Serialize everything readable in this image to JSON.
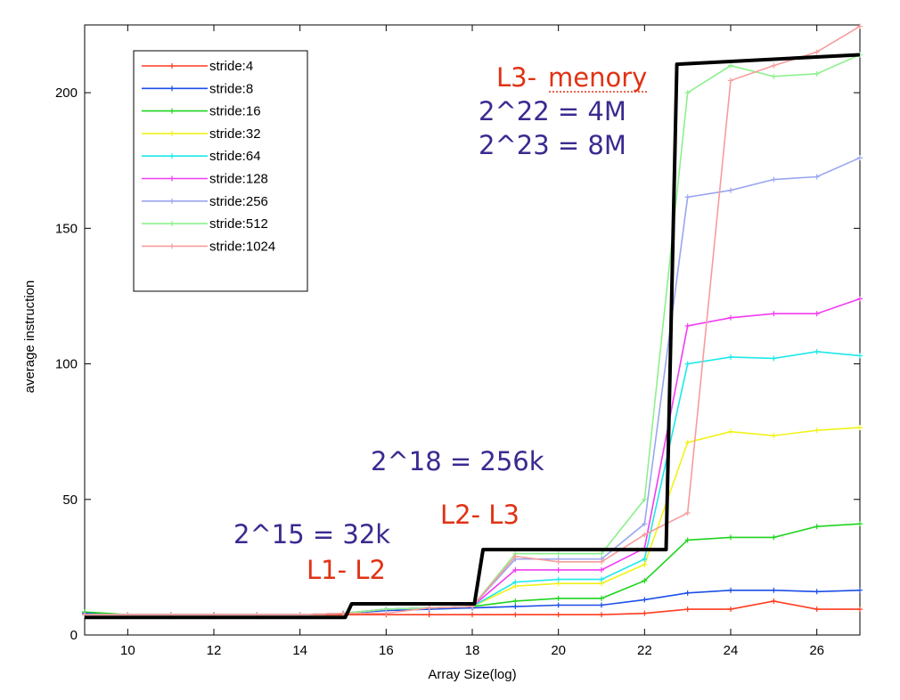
{
  "chart_data": {
    "type": "line",
    "xlabel": "Array Size(log)",
    "ylabel": "average instruction",
    "xlim": [
      9,
      27
    ],
    "ylim": [
      0,
      225
    ],
    "xticks": [
      10,
      12,
      14,
      16,
      18,
      20,
      22,
      24,
      26
    ],
    "yticks": [
      0,
      50,
      100,
      150,
      200
    ],
    "grid": false,
    "legend_position": "top-left",
    "x": [
      9,
      10,
      11,
      12,
      13,
      14,
      15,
      16,
      17,
      18,
      19,
      20,
      21,
      22,
      23,
      24,
      25,
      26,
      27
    ],
    "series": [
      {
        "name": "stride:4",
        "color": "#ff3b1f",
        "values": [
          7.5,
          7.5,
          7.5,
          7.5,
          7.5,
          7.5,
          7.5,
          7.5,
          7.5,
          7.5,
          7.5,
          7.5,
          7.5,
          8,
          9.5,
          9.5,
          12.5,
          9.5,
          9.5
        ]
      },
      {
        "name": "stride:8",
        "color": "#1d4ee8",
        "values": [
          8,
          7.5,
          7.5,
          7.5,
          7.5,
          7.5,
          8,
          9,
          9.5,
          10,
          10.5,
          11,
          11,
          13,
          15.5,
          16.5,
          16.5,
          16,
          16.5
        ]
      },
      {
        "name": "stride:16",
        "color": "#1fd41f",
        "values": [
          8.5,
          7.5,
          7.5,
          7.5,
          7.5,
          7.5,
          8,
          9.5,
          10,
          10.5,
          12.5,
          13.5,
          13.5,
          20,
          35,
          36,
          36,
          40,
          41
        ]
      },
      {
        "name": "stride:32",
        "color": "#f2f21a",
        "values": [
          7.5,
          7.5,
          7.5,
          7.5,
          7.5,
          7.5,
          8,
          9.5,
          10,
          10.5,
          18,
          19,
          19,
          26,
          71,
          75,
          73.5,
          75.5,
          76.5
        ]
      },
      {
        "name": "stride:64",
        "color": "#1ee8e8",
        "values": [
          7.5,
          7.5,
          7.5,
          7.5,
          7.5,
          7.5,
          8,
          9.5,
          10,
          10.5,
          19.5,
          20.5,
          20.5,
          28,
          100,
          102.5,
          102,
          104.5,
          103
        ]
      },
      {
        "name": "stride:128",
        "color": "#f23cf2",
        "values": [
          7.5,
          7.5,
          7.5,
          7.5,
          7.5,
          7.5,
          8,
          9.5,
          10,
          10.5,
          24,
          24,
          24,
          32,
          114,
          117,
          118.5,
          118.5,
          124
        ]
      },
      {
        "name": "stride:256",
        "color": "#9aa6f0",
        "values": [
          7.5,
          7.5,
          7.5,
          7.5,
          7.5,
          7.5,
          8,
          9.5,
          10,
          10.5,
          28,
          28,
          28,
          41,
          161.5,
          164,
          168,
          169,
          176
        ]
      },
      {
        "name": "stride:512",
        "color": "#8ef08e",
        "values": [
          7.5,
          7.5,
          7.5,
          7.5,
          7.5,
          7.5,
          8,
          9.5,
          10,
          10.5,
          30,
          30,
          30,
          50,
          200,
          210,
          206,
          207,
          214
        ]
      },
      {
        "name": "stride:1024",
        "color": "#f79c9c",
        "values": [
          7.5,
          7.5,
          7.5,
          7.5,
          7.5,
          7.5,
          8,
          8,
          10,
          10.5,
          29,
          27,
          27,
          37,
          45,
          204.5,
          210,
          215,
          224.5
        ]
      }
    ],
    "overlay_step_line": {
      "color": "#000000",
      "points": [
        [
          9,
          6.5
        ],
        [
          15.05,
          6.5
        ],
        [
          15.2,
          11.5
        ],
        [
          18.05,
          11.5
        ],
        [
          18.25,
          31.5
        ],
        [
          22.5,
          31.5
        ],
        [
          22.75,
          210.5
        ],
        [
          27,
          214
        ]
      ]
    },
    "annotations": [
      {
        "text": "L3- ",
        "color": "#e03214"
      },
      {
        "text": "menory",
        "color": "#e03214"
      },
      {
        "text": "2^22 = 4M",
        "color": "#3a2a90"
      },
      {
        "text": "2^23 = 8M",
        "color": "#3a2a90"
      },
      {
        "text": "2^18 = 256k",
        "color": "#3a2a90"
      },
      {
        "text": "L2- L3",
        "color": "#e03214"
      },
      {
        "text": "2^15 = 32k",
        "color": "#3a2a90"
      },
      {
        "text": "L1- L2",
        "color": "#e03214"
      }
    ]
  }
}
